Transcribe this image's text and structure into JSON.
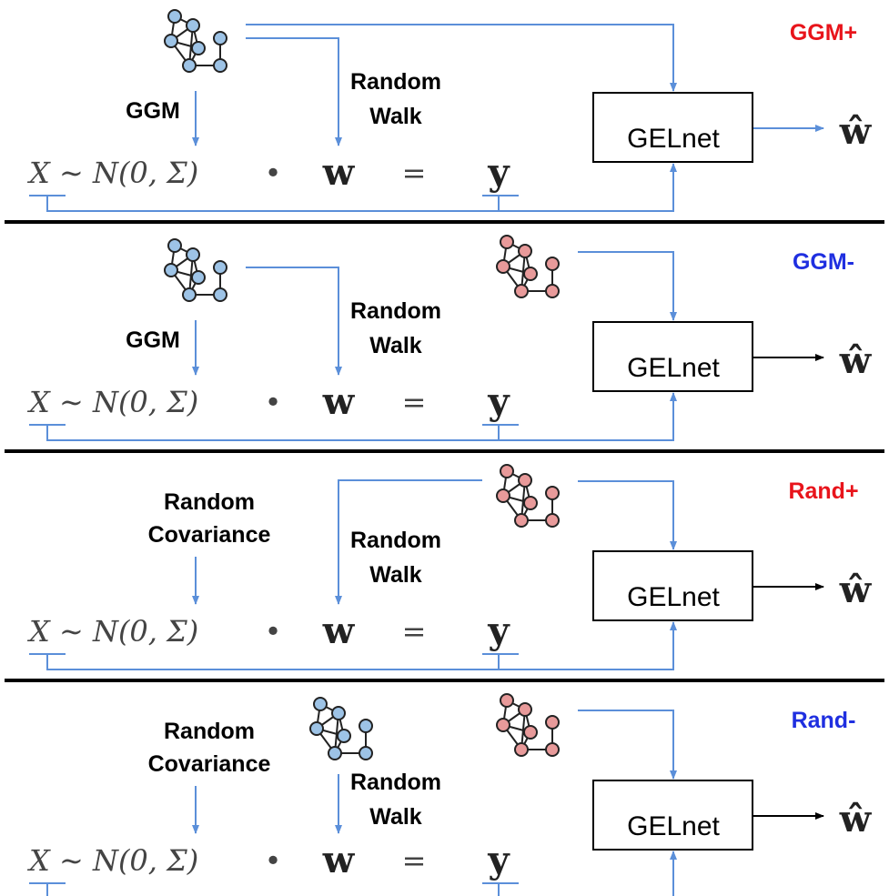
{
  "panels": [
    {
      "tag": "GGM+",
      "source": [
        "GGM"
      ],
      "walk": [
        "Random",
        "Walk"
      ],
      "box": "GELnet",
      "equation": {
        "x": "X ∼ N(0, Σ)",
        "dot": "•",
        "w": "w",
        "eq": "=",
        "y": "y"
      },
      "output": "ŵ"
    },
    {
      "tag": "GGM-",
      "source": [
        "GGM"
      ],
      "walk": [
        "Random",
        "Walk"
      ],
      "box": "GELnet",
      "equation": {
        "x": "X ∼ N(0, Σ)",
        "dot": "•",
        "w": "w",
        "eq": "=",
        "y": "y"
      },
      "output": "ŵ"
    },
    {
      "tag": "Rand+",
      "source": [
        "Random",
        "Covariance"
      ],
      "walk": [
        "Random",
        "Walk"
      ],
      "box": "GELnet",
      "equation": {
        "x": "X ∼ N(0, Σ)",
        "dot": "•",
        "w": "w",
        "eq": "=",
        "y": "y"
      },
      "output": "ŵ"
    },
    {
      "tag": "Rand-",
      "source": [
        "Random",
        "Covariance"
      ],
      "walk": [
        "Random",
        "Walk"
      ],
      "box": "GELnet",
      "equation": {
        "x": "X ∼ N(0, Σ)",
        "dot": "•",
        "w": "w",
        "eq": "=",
        "y": "y"
      },
      "output": "ŵ"
    }
  ]
}
